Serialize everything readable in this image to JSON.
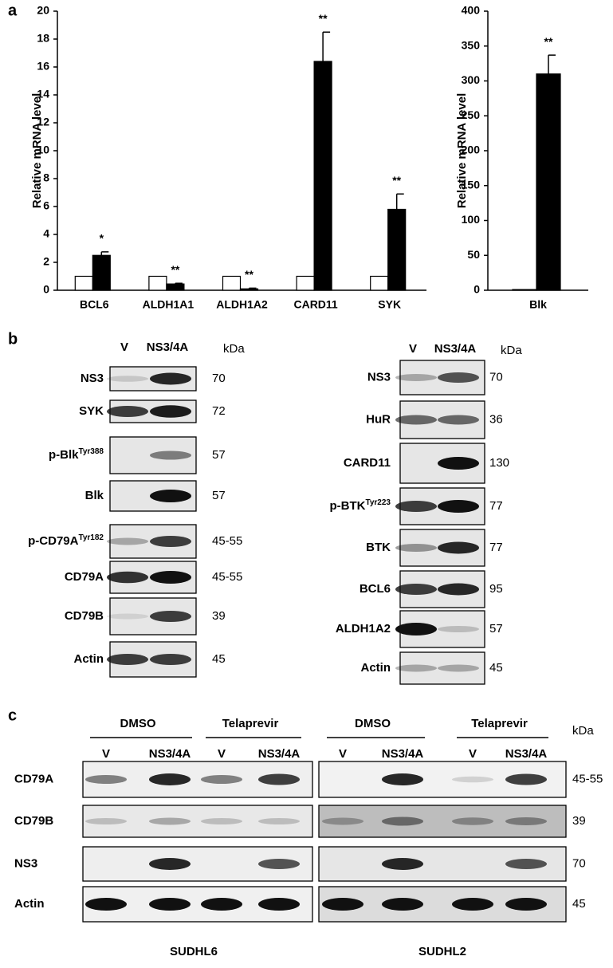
{
  "panel_labels": [
    "a",
    "b",
    "c"
  ],
  "chart_data": [
    {
      "type": "bar",
      "ylabel": "Relative mRNA level",
      "categories": [
        "BCL6",
        "ALDH1A1",
        "ALDH1A2",
        "CARD11",
        "SYK"
      ],
      "series": [
        {
          "color": "#ffffff",
          "values": [
            1,
            1,
            1,
            1,
            1
          ]
        },
        {
          "color": "#000000",
          "values": [
            2.5,
            0.45,
            0.1,
            16.4,
            5.8
          ],
          "errors": [
            0.25,
            0.05,
            0.05,
            2.1,
            1.1
          ],
          "annotations": [
            "*",
            "**",
            "**",
            "**",
            "**"
          ]
        }
      ],
      "ylim": [
        0,
        20
      ],
      "yticks": [
        0,
        2,
        4,
        6,
        8,
        10,
        12,
        14,
        16,
        18,
        20
      ]
    },
    {
      "type": "bar",
      "ylabel": "Relative mRNA level",
      "categories": [
        "Blk"
      ],
      "series": [
        {
          "color": "#ffffff",
          "values": [
            1
          ]
        },
        {
          "color": "#000000",
          "values": [
            310
          ],
          "errors": [
            27
          ],
          "annotations": [
            "**"
          ]
        }
      ],
      "ylim": [
        0,
        400
      ],
      "yticks": [
        0,
        50,
        100,
        150,
        200,
        250,
        300,
        350,
        400
      ]
    }
  ],
  "panel_b": {
    "left": {
      "lanes": [
        "V",
        "NS3/4A"
      ],
      "kda_header": "kDa",
      "rows": [
        {
          "name": "NS3",
          "kda": "70"
        },
        {
          "name": "SYK",
          "kda": "72"
        },
        {
          "name": "p-Blk",
          "sup": "Tyr388",
          "kda": "57"
        },
        {
          "name": "Blk",
          "kda": "57"
        },
        {
          "name": "p-CD79A",
          "sup": "Tyr182",
          "kda": "45-55"
        },
        {
          "name": "CD79A",
          "kda": "45-55"
        },
        {
          "name": "CD79B",
          "kda": "39"
        },
        {
          "name": "Actin",
          "kda": "45"
        }
      ]
    },
    "right": {
      "lanes": [
        "V",
        "NS3/4A"
      ],
      "kda_header": "kDa",
      "rows": [
        {
          "name": "NS3",
          "kda": "70"
        },
        {
          "name": "HuR",
          "kda": "36"
        },
        {
          "name": "CARD11",
          "kda": "130"
        },
        {
          "name": "p-BTK",
          "sup": "Tyr223",
          "kda": "77"
        },
        {
          "name": "BTK",
          "kda": "77"
        },
        {
          "name": "BCL6",
          "kda": "95"
        },
        {
          "name": "ALDH1A2",
          "kda": "57"
        },
        {
          "name": "Actin",
          "kda": "45"
        }
      ]
    }
  },
  "panel_c": {
    "kda_header": "kDa",
    "rows": [
      {
        "name": "CD79A",
        "kda": "45-55"
      },
      {
        "name": "CD79B",
        "kda": "39"
      },
      {
        "name": "NS3",
        "kda": "70"
      },
      {
        "name": "Actin",
        "kda": "45"
      }
    ],
    "blots": [
      {
        "cell_line": "SUDHL6",
        "groups": [
          {
            "treatment": "DMSO",
            "lanes": [
              "V",
              "NS3/4A"
            ]
          },
          {
            "treatment": "Telaprevir",
            "lanes": [
              "V",
              "NS3/4A"
            ]
          }
        ]
      },
      {
        "cell_line": "SUDHL2",
        "groups": [
          {
            "treatment": "DMSO",
            "lanes": [
              "V",
              "NS3/4A"
            ]
          },
          {
            "treatment": "Telaprevir",
            "lanes": [
              "V",
              "NS3/4A"
            ]
          }
        ]
      }
    ]
  }
}
